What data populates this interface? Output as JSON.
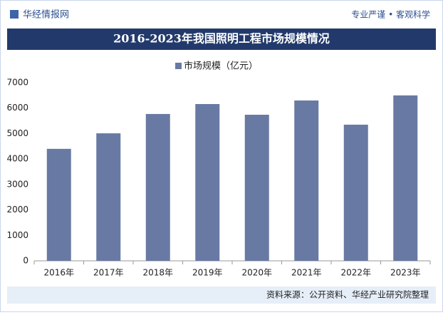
{
  "header": {
    "logo": "华经情报网",
    "slogan": "专业严谨 • 客观科学"
  },
  "chart_data": {
    "type": "bar",
    "title": "2016-2023年我国照明工程市场规模情况",
    "categories": [
      "2016年",
      "2017年",
      "2018年",
      "2019年",
      "2020年",
      "2021年",
      "2022年",
      "2023年"
    ],
    "series": [
      {
        "name": "市场规模（亿元）",
        "color": "#687aa3",
        "values": [
          4400,
          5010,
          5770,
          6160,
          5740,
          6300,
          5350,
          6500
        ]
      }
    ],
    "ylim": [
      0,
      7000
    ],
    "yticks": [
      0,
      1000,
      2000,
      3000,
      4000,
      5000,
      6000,
      7000
    ],
    "grid": false
  },
  "footer": {
    "source": "资料来源：公开资料、华经产业研究院整理"
  }
}
